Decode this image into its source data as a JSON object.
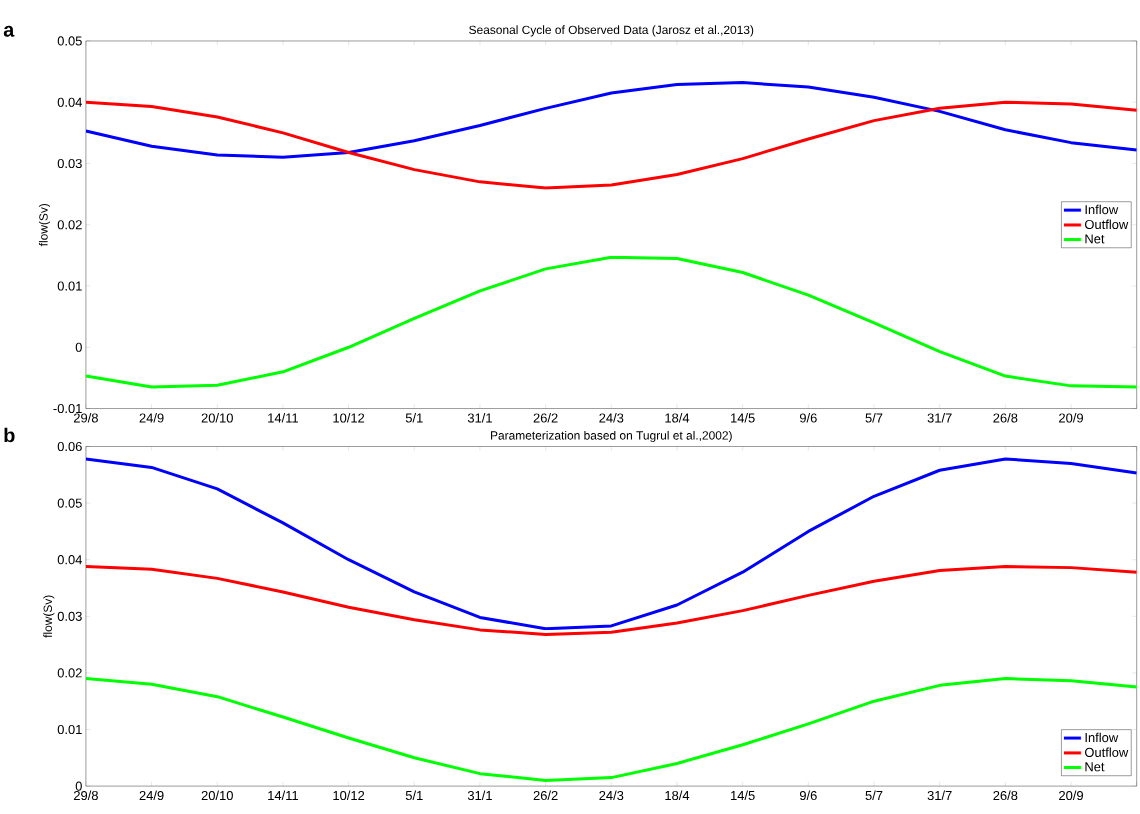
{
  "chart_data": [
    {
      "type": "line",
      "title": "Seasonal Cycle of Observed Data (Jarosz et al.,2013)",
      "ylabel": "flow(Sv)",
      "annotations": [
        "a"
      ],
      "categories": [
        "29/8",
        "24/9",
        "20/10",
        "14/11",
        "10/12",
        "5/1",
        "31/1",
        "26/2",
        "24/3",
        "18/4",
        "14/5",
        "9/6",
        "5/7",
        "31/7",
        "26/8",
        "20/9",
        null
      ],
      "ylim": [
        -0.01,
        0.05
      ],
      "yticks": [
        -0.01,
        0,
        0.01,
        0.02,
        0.03,
        0.04,
        0.05
      ],
      "legend": "right",
      "series": [
        {
          "name": "Inflow",
          "color": "#0000ff",
          "values": [
            0.0353,
            0.0328,
            0.0314,
            0.031,
            0.0318,
            0.0337,
            0.0362,
            0.039,
            0.0415,
            0.0429,
            0.0432,
            0.0425,
            0.0408,
            0.0385,
            0.0355,
            0.0334,
            0.0322
          ]
        },
        {
          "name": "Outflow",
          "color": "#ff0000",
          "values": [
            0.04,
            0.0393,
            0.0376,
            0.035,
            0.0318,
            0.029,
            0.027,
            0.026,
            0.0265,
            0.0282,
            0.0308,
            0.034,
            0.037,
            0.039,
            0.04,
            0.0397,
            0.0387
          ]
        },
        {
          "name": "Net",
          "color": "#00ff00",
          "values": [
            -0.0047,
            -0.0065,
            -0.0062,
            -0.004,
            0.0,
            0.0047,
            0.0092,
            0.0128,
            0.0147,
            0.0145,
            0.0122,
            0.0085,
            0.004,
            -0.0007,
            -0.0047,
            -0.0063,
            -0.0065
          ]
        }
      ]
    },
    {
      "type": "line",
      "title": "Parameterization based on Tugrul et al.,2002)",
      "ylabel": "flow(Sv)",
      "annotations": [
        "b"
      ],
      "categories": [
        "29/8",
        "24/9",
        "20/10",
        "14/11",
        "10/12",
        "5/1",
        "31/1",
        "26/2",
        "24/3",
        "18/4",
        "14/5",
        "9/6",
        "5/7",
        "31/7",
        "26/8",
        "20/9",
        null
      ],
      "ylim": [
        0,
        0.06
      ],
      "yticks": [
        0,
        0.01,
        0.02,
        0.03,
        0.04,
        0.05,
        0.06
      ],
      "legend": "bottom right",
      "series": [
        {
          "name": "Inflow",
          "color": "#0000ff",
          "values": [
            0.0578,
            0.0563,
            0.0525,
            0.0465,
            0.04,
            0.0343,
            0.0298,
            0.0278,
            0.0283,
            0.032,
            0.0378,
            0.045,
            0.0512,
            0.0558,
            0.0578,
            0.057,
            0.0553
          ]
        },
        {
          "name": "Outflow",
          "color": "#ff0000",
          "values": [
            0.0388,
            0.0383,
            0.0367,
            0.0343,
            0.0316,
            0.0294,
            0.0276,
            0.0268,
            0.0272,
            0.0288,
            0.031,
            0.0337,
            0.0362,
            0.0381,
            0.0388,
            0.0386,
            0.0378
          ]
        },
        {
          "name": "Net",
          "color": "#00ff00",
          "values": [
            0.019,
            0.018,
            0.0158,
            0.0122,
            0.0085,
            0.005,
            0.0022,
            0.001,
            0.0015,
            0.004,
            0.0073,
            0.011,
            0.015,
            0.0178,
            0.019,
            0.0186,
            0.0175
          ]
        }
      ]
    }
  ]
}
